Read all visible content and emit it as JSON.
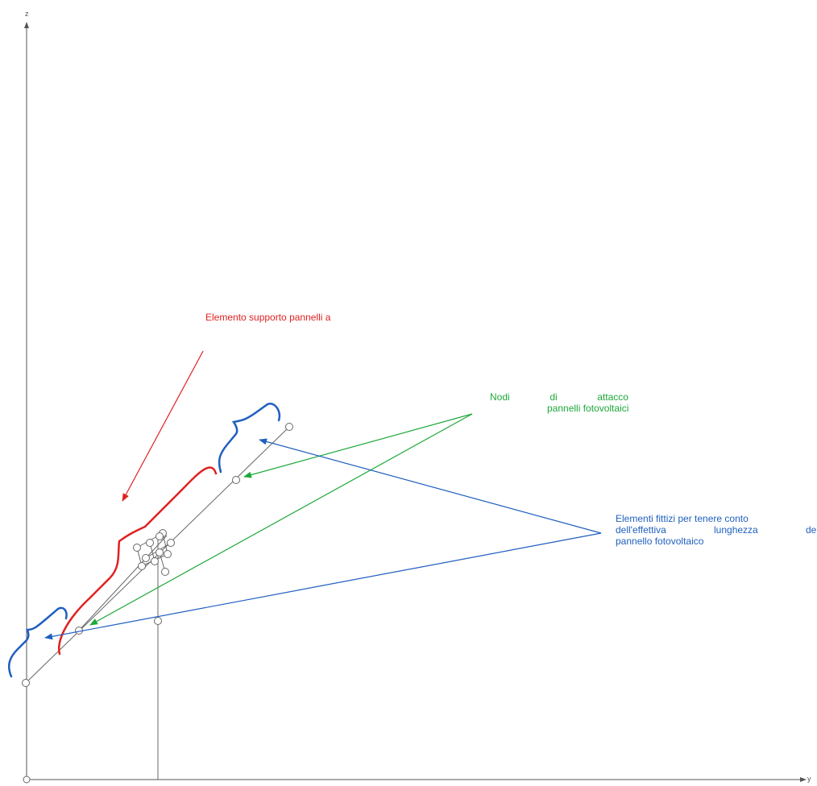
{
  "axes": {
    "z_label": "z",
    "y_label": "y"
  },
  "annotations": {
    "support_element": "Elemento supporto pannelli a",
    "nodes": {
      "line1": [
        "Nodi",
        "di",
        "attacco"
      ],
      "line2": "pannelli fotovoltaici"
    },
    "fictitious": {
      "line1": "Elementi fittizi per tenere conto",
      "line2": [
        "dell'effettiva",
        "lunghezza",
        "del"
      ],
      "line3": "pannello fotovoltaico"
    }
  },
  "colors": {
    "red": "#e02020",
    "green": "#1ea83a",
    "blue": "#1f5fbf",
    "structure": "#666666"
  }
}
